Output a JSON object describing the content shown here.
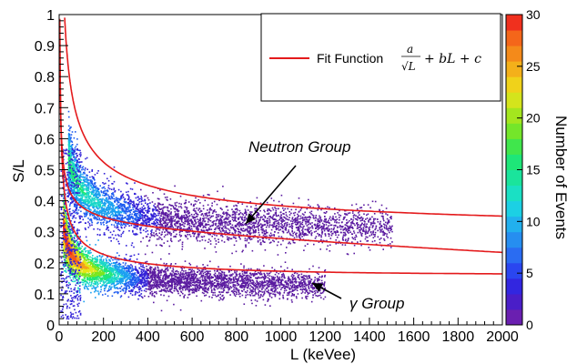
{
  "chart_data": {
    "type": "heatmap",
    "title": "",
    "xlabel": "L (keVee)",
    "ylabel": "S/L",
    "xlim": [
      0,
      2000
    ],
    "ylim": [
      0,
      1
    ],
    "x_ticks": [
      "0",
      "200",
      "400",
      "600",
      "800",
      "1000",
      "1200",
      "1400",
      "1600",
      "1800",
      "2000"
    ],
    "y_ticks": [
      "0",
      "0.1",
      "0.2",
      "0.3",
      "0.4",
      "0.5",
      "0.6",
      "0.7",
      "0.8",
      "0.9",
      "1"
    ],
    "x_tick_values": [
      0,
      200,
      400,
      600,
      800,
      1000,
      1200,
      1400,
      1600,
      1800,
      2000
    ],
    "y_tick_values": [
      0,
      0.1,
      0.2,
      0.3,
      0.4,
      0.5,
      0.6,
      0.7,
      0.8,
      0.9,
      1
    ],
    "colorbar": {
      "label": "Number of Events",
      "range": [
        0,
        30
      ],
      "ticks": [
        "0",
        "5",
        "10",
        "15",
        "20",
        "25",
        "30"
      ],
      "tick_values": [
        0,
        5,
        10,
        15,
        20,
        25,
        30
      ]
    },
    "legend": {
      "position": "top-right",
      "entry_text": "Fit Function",
      "formula": "a/√L + bL + c",
      "line_color": "#e41a1c"
    },
    "populations": [
      {
        "name": "Neutron Group",
        "x_range": [
          40,
          1500
        ],
        "center_curve": {
          "a": 1.8,
          "b": 1.05e-05,
          "c": 0.255
        }
      },
      {
        "name": "γ Group",
        "x_range": [
          20,
          1200
        ],
        "center_curve": {
          "a": 0.9,
          "b": 0,
          "c": 0.105
        }
      }
    ],
    "fit_curves": [
      {
        "a": 3.6,
        "b": 0,
        "c": 0.27
      },
      {
        "a": 1.05,
        "b": -3.5e-05,
        "c": 0.28
      },
      {
        "a": 1.5,
        "b": 5.5e-06,
        "c": 0.12
      }
    ],
    "annotations": [
      {
        "text": "Neutron Group",
        "arrow_to": [
          820,
          0.32
        ]
      },
      {
        "text": "γ Group",
        "arrow_to": [
          1180,
          0.13
        ]
      }
    ],
    "colors": {
      "fit_line": "#e41a1c",
      "palette": [
        "#5a1aa0",
        "#3222d8",
        "#1e5cf0",
        "#1aa0f0",
        "#19d7c8",
        "#1ee678",
        "#7ce61e",
        "#e6e619",
        "#f5a019",
        "#f55a19",
        "#f01e1e"
      ]
    }
  }
}
